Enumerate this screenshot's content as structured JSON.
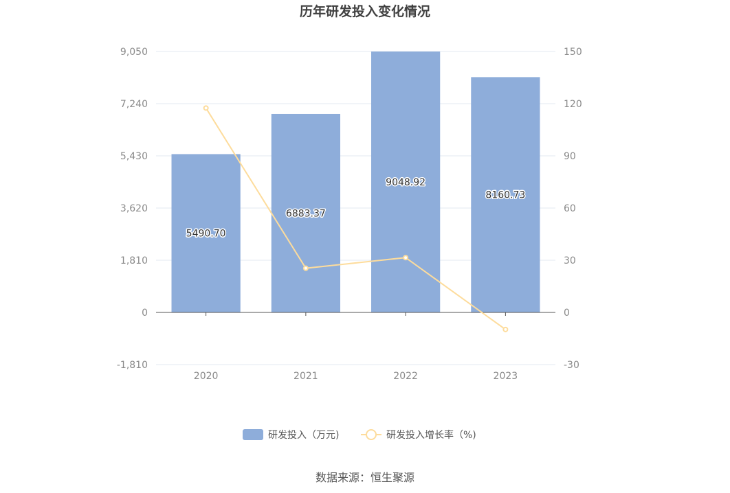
{
  "colors": {
    "bar": "#8eadda",
    "line": "#fddc9c",
    "grid": "#e3e8f2",
    "axis": "#555555"
  },
  "chart_data": {
    "type": "bar",
    "title": "历年研发投入变化情况",
    "categories": [
      "2020",
      "2021",
      "2022",
      "2023"
    ],
    "series": [
      {
        "name": "研发投入（万元)",
        "type": "bar",
        "axis": "left",
        "values": [
          5490.7,
          6883.37,
          9048.92,
          8160.73
        ],
        "labels": [
          "5490.70",
          "6883.37",
          "9048.92",
          "8160.73"
        ]
      },
      {
        "name": "研发投入增长率（%)",
        "type": "line",
        "axis": "right",
        "values": [
          117.5,
          25.4,
          31.5,
          -9.8
        ]
      }
    ],
    "y_left": {
      "ylim": [
        -1810,
        9050
      ],
      "ticks": [
        -1810,
        0,
        1810,
        3620,
        5430,
        7240,
        9050
      ],
      "tick_labels": [
        "-1,810",
        "0",
        "1,810",
        "3,620",
        "5,430",
        "7,240",
        "9,050"
      ]
    },
    "y_right": {
      "ylim": [
        -30,
        150
      ],
      "ticks": [
        -30,
        0,
        30,
        60,
        90,
        120,
        150
      ],
      "tick_labels": [
        "-30",
        "0",
        "30",
        "60",
        "90",
        "120",
        "150"
      ]
    },
    "grid": true,
    "legend_position": "bottom-center"
  },
  "legend": {
    "bar_label": "研发投入（万元)",
    "line_label": "研发投入增长率（%)"
  },
  "footer": {
    "source": "数据来源：恒生聚源"
  }
}
